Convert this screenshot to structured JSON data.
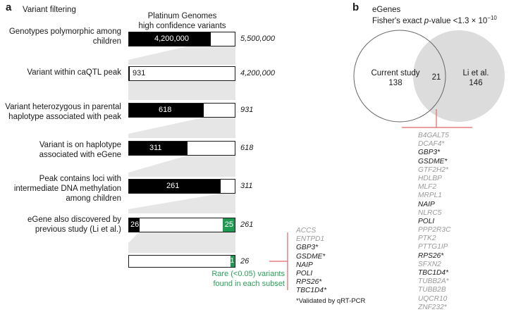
{
  "panel_a": {
    "letter": "a",
    "section_title": "Variant filtering",
    "column_header_line1": "Platinum Genomes",
    "column_header_line2": "high confidence variants",
    "stages": [
      {
        "label": "Genotypes polymorphic among children",
        "value": 4200000,
        "value_label": "4,200,000",
        "total_label": "5,500,000",
        "fraction": 0.7636
      },
      {
        "label": "Variant within caQTL peak",
        "value": 931,
        "value_label": "931",
        "total_label": "4,200,000",
        "fraction": 0.0002
      },
      {
        "label": "Variant heterozygous in parental haplotype associated with peak",
        "value": 618,
        "value_label": "618",
        "total_label": "931",
        "fraction": 0.6638
      },
      {
        "label": "Variant is on haplotype associated with eGene",
        "value": 311,
        "value_label": "311",
        "total_label": "618",
        "fraction": 0.5032
      },
      {
        "label": "Peak contains loci with intermediate DNA methylation among children",
        "value": 261,
        "value_label": "261",
        "total_label": "311",
        "fraction": 0.8392
      },
      {
        "label": "eGene also discovered by previous study (Li et al.)",
        "value_left_label": "26",
        "value_right_label": "25",
        "total_label": "261",
        "fraction_left": 0.0996,
        "fraction_right": 0.0958
      },
      {
        "label": "",
        "value_right_label": "1",
        "total_label": "26",
        "fraction_right": 0.0385
      }
    ],
    "rare_note_line1": "Rare (<0.05) variants",
    "rare_note_line2": "found in each subset",
    "validated_note": "*Validated by qRT-PCR",
    "genes": [
      {
        "name": "ACCS",
        "validated": false
      },
      {
        "name": "ENTPD1",
        "validated": false
      },
      {
        "name": "GBP3*",
        "validated": true
      },
      {
        "name": "GSDME*",
        "validated": true
      },
      {
        "name": "NAIP",
        "validated": true
      },
      {
        "name": "POLI",
        "validated": true
      },
      {
        "name": "RPS26*",
        "validated": true
      },
      {
        "name": "TBC1D4*",
        "validated": true
      }
    ]
  },
  "panel_b": {
    "letter": "b",
    "title": "eGenes",
    "subtitle": "Fisher's exact p-value <1.3 × 10⁻¹⁰",
    "subtitle_prefix": "Fisher's exact ",
    "subtitle_p": "p",
    "subtitle_suffix": "-value <1.3 × 10",
    "subtitle_exp": "−10",
    "venn": {
      "left_label": "Current study",
      "left_count": "138",
      "overlap_count": "21",
      "right_label": "Li et al.",
      "right_count": "146"
    },
    "genes": [
      {
        "name": "B4GALT5",
        "validated": false
      },
      {
        "name": "DCAF4*",
        "validated": false
      },
      {
        "name": "GBP3*",
        "validated": true
      },
      {
        "name": "GSDME*",
        "validated": true
      },
      {
        "name": "GTF2H2*",
        "validated": false
      },
      {
        "name": "HDLBP",
        "validated": false
      },
      {
        "name": "MLF2",
        "validated": false
      },
      {
        "name": "MRPL1",
        "validated": false
      },
      {
        "name": "NAIP",
        "validated": true
      },
      {
        "name": "NLRC5",
        "validated": false
      },
      {
        "name": "POLI",
        "validated": true
      },
      {
        "name": "PPP2R3C",
        "validated": false
      },
      {
        "name": "PTK2",
        "validated": false
      },
      {
        "name": "PTTG1IP",
        "validated": false
      },
      {
        "name": "RPS26*",
        "validated": true
      },
      {
        "name": "SFXN2",
        "validated": false
      },
      {
        "name": "TBC1D4*",
        "validated": true
      },
      {
        "name": "TUBB2A*",
        "validated": false
      },
      {
        "name": "TUBB2B",
        "validated": false
      },
      {
        "name": "UQCR10",
        "validated": false
      },
      {
        "name": "ZNF232*",
        "validated": false
      }
    ]
  },
  "colors": {
    "fill": "#000000",
    "green": "#1e9a52",
    "funnel": "#e6e6e6",
    "red_bracket": "#e06666",
    "grey_text": "#9a9a9a",
    "venn_right": "#dcdcdc"
  }
}
